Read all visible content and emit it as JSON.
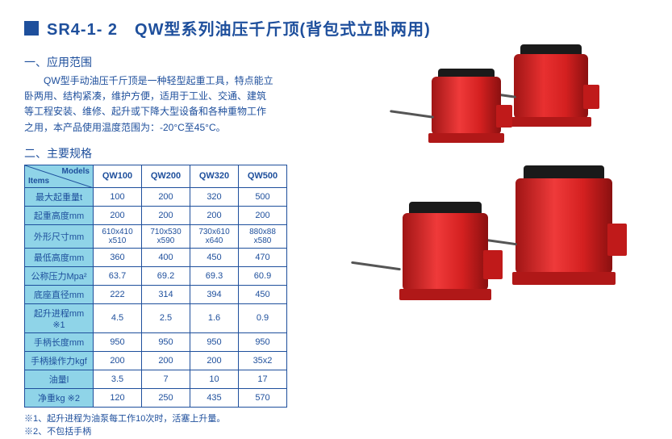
{
  "title": "SR4-1- 2　QW型系列油压千斤顶(背包式立卧两用)",
  "section1": "一、应用范围",
  "desc": "QW型手动油压千斤顶是一种轻型起重工具，特点能立卧两用、结构紧凑，维护方便，适用于工业、交通、建筑等工程安装、维修、起升或下降大型设备和各种重物工作之用，本产品使用温度范围为：-20°C至45°C。",
  "section2": "二、主要规格",
  "table": {
    "corner_items": "Items",
    "corner_models": "Models",
    "columns": [
      "QW100",
      "QW200",
      "QW320",
      "QW500"
    ],
    "rows": [
      {
        "label": "最大起重量t",
        "vals": [
          "100",
          "200",
          "320",
          "500"
        ]
      },
      {
        "label": "起重高度mm",
        "vals": [
          "200",
          "200",
          "200",
          "200"
        ]
      },
      {
        "label": "外形尺寸mm",
        "vals": [
          "610x410\nx510",
          "710x530\nx590",
          "730x610\nx640",
          "880x88\nx580"
        ]
      },
      {
        "label": "最低高度mm",
        "vals": [
          "360",
          "400",
          "450",
          "470"
        ]
      },
      {
        "label": "公称压力Mpa²",
        "vals": [
          "63.7",
          "69.2",
          "69.3",
          "60.9"
        ]
      },
      {
        "label": "底座直径mm",
        "vals": [
          "222",
          "314",
          "394",
          "450"
        ]
      },
      {
        "label": "起升进程mm ※1",
        "vals": [
          "4.5",
          "2.5",
          "1.6",
          "0.9"
        ]
      },
      {
        "label": "手柄长度mm",
        "vals": [
          "950",
          "950",
          "950",
          "950"
        ]
      },
      {
        "label": "手柄操作力kgf",
        "vals": [
          "200",
          "200",
          "200",
          "35x2"
        ]
      },
      {
        "label": "油量l",
        "vals": [
          "3.5",
          "7",
          "10",
          "17"
        ]
      },
      {
        "label": "净重kg ※2",
        "vals": [
          "120",
          "250",
          "435",
          "570"
        ]
      }
    ]
  },
  "footnote1": "※1、起升进程为油泵每工作10次时，活塞上升量。",
  "footnote2": "※2、不包括手柄",
  "colors": {
    "accent": "#1e4f9c",
    "header_bg": "#8fd4e8",
    "jack_red": "#d42020",
    "jack_red_dark": "#a01515",
    "jack_black": "#1a1a1a",
    "handle": "#555555"
  }
}
